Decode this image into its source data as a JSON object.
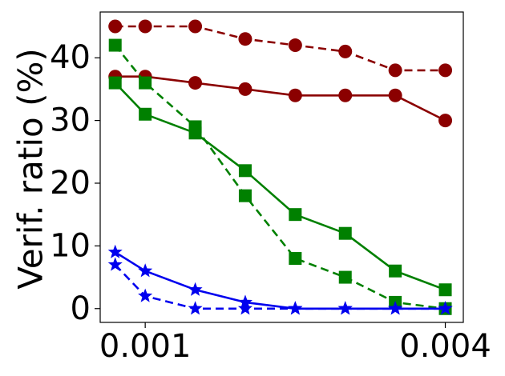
{
  "chart_data": {
    "type": "line",
    "title": "",
    "xlabel": "",
    "ylabel": "Verif. ratio (%)",
    "x": [
      0.0007,
      0.001,
      0.0015,
      0.002,
      0.0025,
      0.003,
      0.0035,
      0.004
    ],
    "xlim": [
      0.00055,
      0.00418
    ],
    "ylim": [
      -2.2,
      47.3
    ],
    "x_ticks": [
      {
        "value": 0.001,
        "label": "0.001"
      },
      {
        "value": 0.004,
        "label": "0.004"
      }
    ],
    "y_ticks": [
      {
        "value": 0,
        "label": "0"
      },
      {
        "value": 10,
        "label": "10"
      },
      {
        "value": 20,
        "label": "20"
      },
      {
        "value": 30,
        "label": "30"
      },
      {
        "value": 40,
        "label": "40"
      }
    ],
    "grid": false,
    "legend": "none",
    "series": [
      {
        "color": "#8b0000",
        "dash": true,
        "marker": "circle",
        "values": [
          45,
          45,
          45,
          43,
          42,
          41,
          38,
          38
        ]
      },
      {
        "color": "#8b0000",
        "dash": false,
        "marker": "circle",
        "values": [
          37,
          37,
          36,
          35,
          34,
          34,
          34,
          30
        ]
      },
      {
        "color": "#008000",
        "dash": true,
        "marker": "square",
        "values": [
          42,
          36,
          29,
          18,
          8,
          5,
          1,
          0
        ]
      },
      {
        "color": "#008000",
        "dash": false,
        "marker": "square",
        "values": [
          36,
          31,
          28,
          22,
          15,
          12,
          6,
          3
        ]
      },
      {
        "color": "#0000ee",
        "dash": false,
        "marker": "star",
        "values": [
          9,
          6,
          3,
          1,
          0,
          0,
          0,
          0
        ]
      },
      {
        "color": "#0000ee",
        "dash": true,
        "marker": "star",
        "values": [
          7,
          2,
          0,
          0,
          0,
          0,
          0,
          0
        ]
      }
    ]
  }
}
